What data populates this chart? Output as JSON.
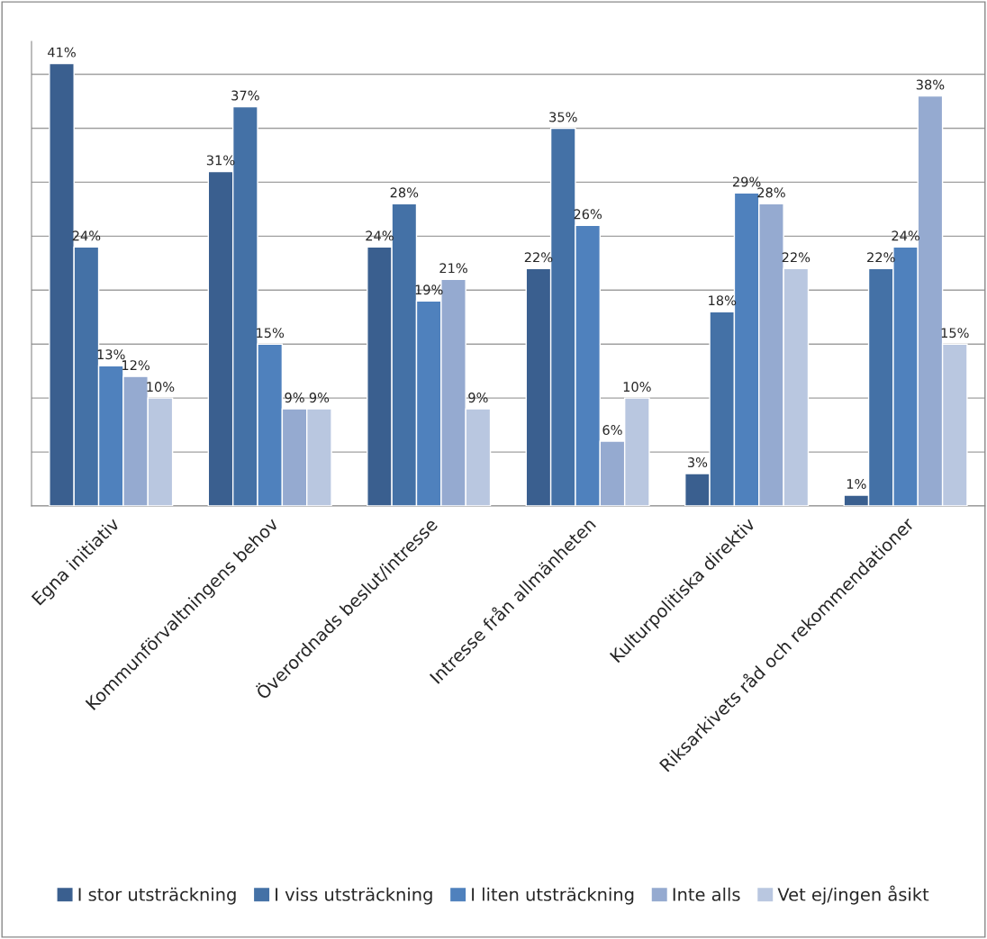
{
  "chart_data": {
    "type": "bar",
    "categories": [
      "Egna initiativ",
      "Kommunförvaltningens behov",
      "Överordnads beslut/intresse",
      "Intresse från allmänheten",
      "Kulturpolitiska direktiv",
      "Riksarkivets råd och rekommendationer"
    ],
    "series": [
      {
        "name": "I stor utsträckning",
        "color": "#3a5f8f",
        "values": [
          41,
          31,
          24,
          22,
          3,
          1
        ],
        "value_labels": [
          "41%",
          "31%",
          "24%",
          "22%",
          "3%",
          "1%"
        ]
      },
      {
        "name": "I viss utsträckning",
        "color": "#4471a6",
        "values": [
          24,
          37,
          28,
          35,
          18,
          22
        ],
        "value_labels": [
          "24%",
          "37%",
          "28%",
          "35%",
          "18%",
          "22%"
        ]
      },
      {
        "name": "I liten utsträckning",
        "color": "#4f81bd",
        "values": [
          13,
          15,
          19,
          26,
          29,
          24
        ],
        "value_labels": [
          "13%",
          "15%",
          "19%",
          "26%",
          "29%",
          "24%"
        ]
      },
      {
        "name": "Inte alls",
        "color": "#95aad0",
        "values": [
          12,
          9,
          21,
          6,
          28,
          38
        ],
        "value_labels": [
          "12%",
          "9%",
          "21%",
          "6%",
          "28%",
          "38%"
        ]
      },
      {
        "name": "Vet ej/ingen åsikt",
        "color": "#b9c7e0",
        "values": [
          10,
          9,
          9,
          10,
          22,
          15
        ],
        "value_labels": [
          "10%",
          "9%",
          "9%",
          "10%",
          "22%",
          "15%"
        ]
      }
    ],
    "grid": "y",
    "legend": "bottom"
  }
}
